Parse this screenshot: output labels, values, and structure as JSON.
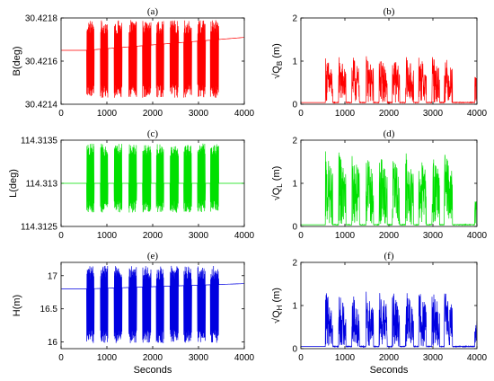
{
  "chart_data": [
    {
      "id": "a",
      "type": "line",
      "title": "(a)",
      "ylabel": "B(deg)",
      "xlabel": "",
      "xlim": [
        0,
        4000
      ],
      "ylim": [
        30.4214,
        30.4218
      ],
      "xticks": [
        0,
        1000,
        2000,
        3000,
        4000
      ],
      "yticks": [
        30.4214,
        30.4216,
        30.4218
      ],
      "ytick_labels": [
        "30.4214",
        "30.4216",
        "30.4218"
      ],
      "color": "#ff0000",
      "static_start": 30.42165,
      "static_end": 30.42171,
      "osc_range": [
        30.42143,
        30.42179
      ],
      "active_windows": [
        [
          560,
          720
        ],
        [
          860,
          1020
        ],
        [
          1160,
          1330
        ],
        [
          1480,
          1650
        ],
        [
          1780,
          1960
        ],
        [
          2080,
          2240
        ],
        [
          2380,
          2560
        ],
        [
          2680,
          2850
        ],
        [
          2980,
          3150
        ],
        [
          3260,
          3440
        ]
      ]
    },
    {
      "id": "b",
      "type": "line",
      "title": "(b)",
      "ylabel": "√Q",
      "ylabel_sub": "B",
      "ylabel_unit": "(m)",
      "xlabel": "",
      "xlim": [
        0,
        4000
      ],
      "ylim": [
        0,
        2
      ],
      "xticks": [
        0,
        1000,
        2000,
        3000,
        4000
      ],
      "yticks": [
        0,
        1,
        2
      ],
      "ytick_labels": [
        "0",
        "1",
        "2"
      ],
      "color": "#ff0000",
      "baseline": 0.04,
      "peak_max": 1.1,
      "active_windows": [
        [
          560,
          720
        ],
        [
          860,
          1020
        ],
        [
          1160,
          1330
        ],
        [
          1480,
          1650
        ],
        [
          1780,
          1960
        ],
        [
          2080,
          2240
        ],
        [
          2380,
          2560
        ],
        [
          2680,
          2850
        ],
        [
          2980,
          3150
        ],
        [
          3260,
          3440
        ]
      ]
    },
    {
      "id": "c",
      "type": "line",
      "title": "(c)",
      "ylabel": "L(deg)",
      "xlabel": "",
      "xlim": [
        0,
        4000
      ],
      "ylim": [
        114.3125,
        114.3135
      ],
      "xticks": [
        0,
        1000,
        2000,
        3000,
        4000
      ],
      "yticks": [
        114.3125,
        114.313,
        114.3135
      ],
      "ytick_labels": [
        "114.3125",
        "114.313",
        "114.3135"
      ],
      "color": "#00e000",
      "static_start": 114.313,
      "static_end": 114.313,
      "osc_range": [
        114.31266,
        114.31346
      ],
      "active_windows": [
        [
          560,
          720
        ],
        [
          860,
          1020
        ],
        [
          1160,
          1330
        ],
        [
          1480,
          1650
        ],
        [
          1780,
          1960
        ],
        [
          2080,
          2240
        ],
        [
          2380,
          2560
        ],
        [
          2680,
          2850
        ],
        [
          2980,
          3150
        ],
        [
          3260,
          3440
        ]
      ]
    },
    {
      "id": "d",
      "type": "line",
      "title": "(d)",
      "ylabel": "√Q",
      "ylabel_sub": "L",
      "ylabel_unit": "(m)",
      "xlabel": "",
      "xlim": [
        0,
        4000
      ],
      "ylim": [
        0,
        2
      ],
      "xticks": [
        0,
        1000,
        2000,
        3000,
        4000
      ],
      "yticks": [
        0,
        1,
        2
      ],
      "ytick_labels": [
        "0",
        "1",
        "2"
      ],
      "color": "#00e000",
      "baseline": 0.04,
      "peak_max": 1.7,
      "active_windows": [
        [
          560,
          720
        ],
        [
          860,
          1020
        ],
        [
          1160,
          1330
        ],
        [
          1480,
          1650
        ],
        [
          1780,
          1960
        ],
        [
          2080,
          2240
        ],
        [
          2380,
          2560
        ],
        [
          2680,
          2850
        ],
        [
          2980,
          3150
        ],
        [
          3260,
          3440
        ]
      ]
    },
    {
      "id": "e",
      "type": "line",
      "title": "(e)",
      "ylabel": "H(m)",
      "xlabel": "Seconds",
      "xlim": [
        0,
        4000
      ],
      "ylim": [
        15.9,
        17.2
      ],
      "xticks": [
        0,
        1000,
        2000,
        3000,
        4000
      ],
      "yticks": [
        16,
        16.5,
        17
      ],
      "ytick_labels": [
        "16",
        "16.5",
        "17"
      ],
      "color": "#0000e0",
      "static_start": 16.8,
      "static_end": 16.88,
      "osc_range": [
        15.98,
        17.15
      ],
      "active_windows": [
        [
          560,
          720
        ],
        [
          860,
          1020
        ],
        [
          1160,
          1330
        ],
        [
          1480,
          1650
        ],
        [
          1780,
          1960
        ],
        [
          2080,
          2240
        ],
        [
          2380,
          2560
        ],
        [
          2680,
          2850
        ],
        [
          2980,
          3150
        ],
        [
          3260,
          3440
        ]
      ]
    },
    {
      "id": "f",
      "type": "line",
      "title": "(f)",
      "ylabel": "√Q",
      "ylabel_sub": "H",
      "ylabel_unit": "(m)",
      "xlabel": "Seconds",
      "xlim": [
        0,
        4000
      ],
      "ylim": [
        0,
        2
      ],
      "xticks": [
        0,
        1000,
        2000,
        3000,
        4000
      ],
      "yticks": [
        0,
        1,
        2
      ],
      "ytick_labels": [
        "0",
        "1",
        "2"
      ],
      "color": "#0000e0",
      "baseline": 0.05,
      "peak_max": 1.3,
      "active_windows": [
        [
          560,
          720
        ],
        [
          860,
          1020
        ],
        [
          1160,
          1330
        ],
        [
          1480,
          1650
        ],
        [
          1780,
          1960
        ],
        [
          2080,
          2240
        ],
        [
          2380,
          2560
        ],
        [
          2680,
          2850
        ],
        [
          2980,
          3150
        ],
        [
          3260,
          3440
        ]
      ]
    }
  ]
}
